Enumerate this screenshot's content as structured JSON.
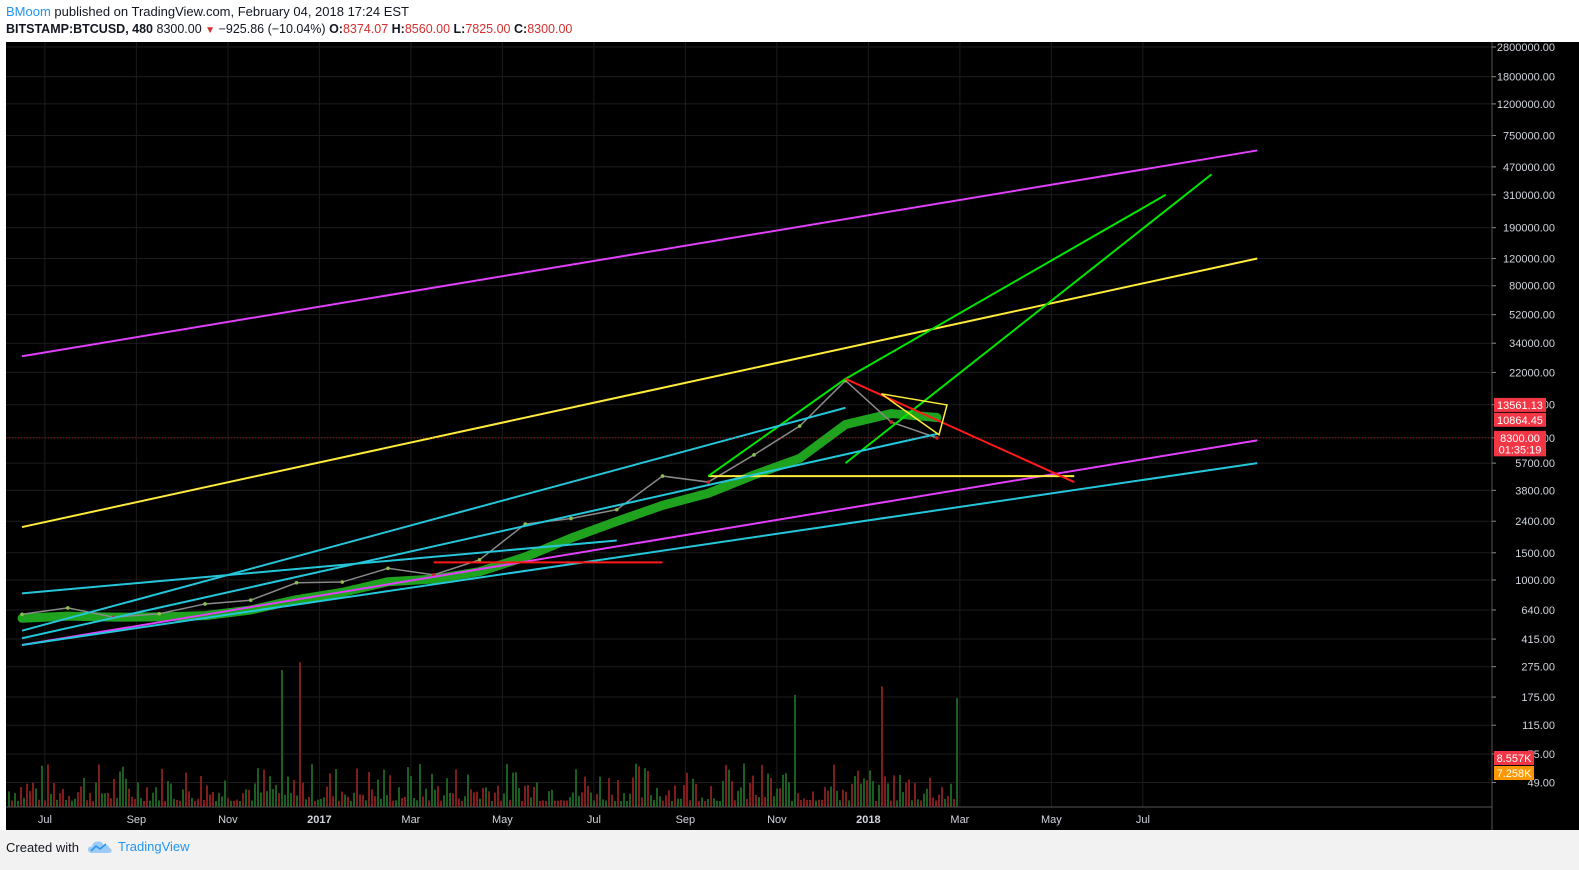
{
  "header": {
    "author": "BMoom",
    "publish_text": " published on TradingView.com, February 04, 2018 17:24 EST",
    "symbol": "BITSTAMP:BTCUSD, 480",
    "last": "8300.00",
    "change": "−925.86 (−10.04%)",
    "o_label": "O:",
    "o_value": "8374.07",
    "h_label": "H:",
    "h_value": "8560.00",
    "l_label": "L:",
    "l_value": "7825.00",
    "c_label": "C:",
    "c_value": "8300.00"
  },
  "footer": {
    "created_with": "Created with",
    "brand": "TradingView"
  },
  "colors": {
    "background": "#000000",
    "magenta": "#e040fb",
    "yellow": "#ffeb3b",
    "green": "#00e600",
    "cyan": "#26c6da",
    "red": "#ff1a1a",
    "axis_text": "#d1d4dc"
  },
  "chart_data": {
    "type": "line",
    "title": "",
    "scale": "log",
    "xlabel": "",
    "ylabel": "",
    "x_tick_labels": [
      "Jul",
      "Sep",
      "Nov",
      "2017",
      "Mar",
      "May",
      "Jul",
      "Sep",
      "Nov",
      "2018",
      "Mar",
      "May",
      "Jul"
    ],
    "y_tick_labels": [
      "2800000.00",
      "1800000.00",
      "1200000.00",
      "750000.00",
      "470000.00",
      "310000.00",
      "190000.00",
      "120000.00",
      "80000.00",
      "52000.00",
      "34000.00",
      "22000.00",
      "13600.00",
      "8300.00",
      "5700.00",
      "3800.00",
      "2400.00",
      "1500.00",
      "1000.00",
      "640.00",
      "415.00",
      "275.00",
      "175.00",
      "115.00",
      "75.00",
      "49.00"
    ],
    "price_labels": [
      {
        "text": "13561.13",
        "color": "#f23645",
        "value": 13561.13
      },
      {
        "text": "10864.45",
        "color": "#f23645",
        "value": 10864.45
      },
      {
        "text": "8300.00",
        "color": "#f23645",
        "value": 8300
      },
      {
        "text": "01:35:19",
        "color": "#f23645",
        "value": 7000
      }
    ],
    "volume_labels": [
      {
        "text": "8.557K",
        "color": "#f23645",
        "value": 8557
      },
      {
        "text": "7.258K",
        "color": "#ff9800",
        "value": 7258
      }
    ],
    "price_series": {
      "name": "BTCUSD",
      "x": [
        "2016-06",
        "2016-07",
        "2016-08",
        "2016-09",
        "2016-10",
        "2016-11",
        "2016-12",
        "2017-01",
        "2017-02",
        "2017-03",
        "2017-04",
        "2017-05",
        "2017-06",
        "2017-07",
        "2017-08",
        "2017-09",
        "2017-10",
        "2017-11",
        "2017-12",
        "2018-01",
        "2018-02"
      ],
      "close": [
        600,
        660,
        575,
        605,
        700,
        740,
        960,
        970,
        1190,
        1080,
        1350,
        2300,
        2500,
        2850,
        4700,
        4300,
        6450,
        9900,
        19500,
        10500,
        8300
      ]
    },
    "trendlines": [
      {
        "color": "magenta",
        "x1": "2016-06",
        "y1": 28000,
        "x2": "2018-09",
        "y2": 600000
      },
      {
        "color": "magenta",
        "x1": "2016-06",
        "y1": 380,
        "x2": "2018-09",
        "y2": 8000
      },
      {
        "color": "yellow",
        "x1": "2016-06",
        "y1": 2200,
        "x2": "2018-09",
        "y2": 120000
      },
      {
        "color": "yellow",
        "x1": "2017-09",
        "y1": 4700,
        "x2": "2018-05",
        "y2": 4700
      },
      {
        "color": "green",
        "x1": "2017-09",
        "y1": 4700,
        "x2": "2017-12",
        "y2": 20000
      },
      {
        "color": "green",
        "x1": "2017-12",
        "y1": 20000,
        "x2": "2018-07",
        "y2": 310000
      },
      {
        "color": "green",
        "x1": "2017-12",
        "y1": 5700,
        "x2": "2018-08",
        "y2": 420000
      },
      {
        "color": "cyan",
        "x1": "2016-06",
        "y1": 820,
        "x2": "2017-07",
        "y2": 1800
      },
      {
        "color": "cyan",
        "x1": "2016-06",
        "y1": 470,
        "x2": "2017-12",
        "y2": 13000
      },
      {
        "color": "cyan",
        "x1": "2016-06",
        "y1": 420,
        "x2": "2018-02",
        "y2": 8800
      },
      {
        "color": "cyan",
        "x1": "2016-06",
        "y1": 380,
        "x2": "2018-09",
        "y2": 5700
      },
      {
        "color": "red",
        "x1": "2017-12",
        "y1": 20000,
        "x2": "2018-05",
        "y2": 4300
      },
      {
        "color": "red",
        "x1": "2017-03",
        "y1": 1300,
        "x2": "2017-08",
        "y2": 1300
      }
    ],
    "grid": true,
    "legend": "none"
  }
}
